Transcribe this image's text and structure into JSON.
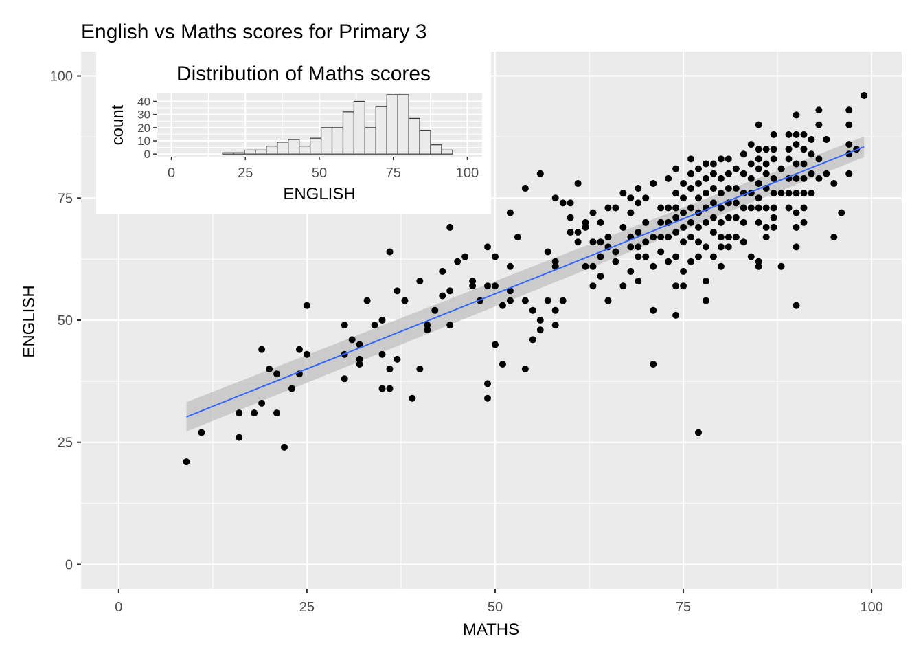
{
  "chart_data": [
    {
      "type": "scatter",
      "title": "English vs Maths scores for Primary 3",
      "xlabel": "MATHS",
      "ylabel": "ENGLISH",
      "xlim": [
        -5,
        104
      ],
      "ylim": [
        -5,
        105
      ],
      "x_ticks": [
        0,
        25,
        50,
        75,
        100
      ],
      "y_ticks": [
        0,
        25,
        50,
        75,
        100
      ],
      "grid": true,
      "background": "#EBEBEB",
      "point_color": "#000000",
      "trend_color": "#3366FF",
      "ribbon_color": "#BEBEBE",
      "points": [
        [
          9,
          21
        ],
        [
          11,
          27
        ],
        [
          16,
          26
        ],
        [
          16,
          31
        ],
        [
          18,
          31
        ],
        [
          19,
          33
        ],
        [
          19,
          44
        ],
        [
          20,
          40
        ],
        [
          21,
          39
        ],
        [
          21,
          31
        ],
        [
          22,
          24
        ],
        [
          23,
          36
        ],
        [
          24,
          39
        ],
        [
          24,
          44
        ],
        [
          25,
          43
        ],
        [
          25,
          53
        ],
        [
          30,
          49
        ],
        [
          30,
          43
        ],
        [
          30,
          38
        ],
        [
          31,
          46
        ],
        [
          32,
          45
        ],
        [
          32,
          41
        ],
        [
          32,
          42
        ],
        [
          33,
          54
        ],
        [
          34,
          49
        ],
        [
          35,
          43
        ],
        [
          35,
          50
        ],
        [
          35,
          36
        ],
        [
          36,
          64
        ],
        [
          36,
          40
        ],
        [
          36,
          36
        ],
        [
          37,
          42
        ],
        [
          37,
          56
        ],
        [
          38,
          54
        ],
        [
          39,
          34
        ],
        [
          40,
          58
        ],
        [
          40,
          40
        ],
        [
          41,
          48
        ],
        [
          41,
          49
        ],
        [
          42,
          52
        ],
        [
          43,
          60
        ],
        [
          43,
          55
        ],
        [
          44,
          69
        ],
        [
          44,
          49
        ],
        [
          44,
          56
        ],
        [
          45,
          62
        ],
        [
          46,
          63
        ],
        [
          47,
          58
        ],
        [
          47,
          57
        ],
        [
          48,
          54
        ],
        [
          49,
          65
        ],
        [
          49,
          57
        ],
        [
          49,
          37
        ],
        [
          49,
          34
        ],
        [
          50,
          63
        ],
        [
          50,
          57
        ],
        [
          50,
          45
        ],
        [
          51,
          41
        ],
        [
          51,
          53
        ],
        [
          52,
          72
        ],
        [
          52,
          61
        ],
        [
          52,
          54
        ],
        [
          52,
          56
        ],
        [
          53,
          67
        ],
        [
          54,
          77
        ],
        [
          54,
          54
        ],
        [
          54,
          40
        ],
        [
          55,
          52
        ],
        [
          55,
          46
        ],
        [
          56,
          80
        ],
        [
          56,
          50
        ],
        [
          56,
          48
        ],
        [
          57,
          54
        ],
        [
          57,
          64
        ],
        [
          58,
          75
        ],
        [
          58,
          62
        ],
        [
          58,
          61
        ],
        [
          58,
          52
        ],
        [
          58,
          49
        ],
        [
          59,
          74
        ],
        [
          59,
          54
        ],
        [
          60,
          74
        ],
        [
          60,
          71
        ],
        [
          60,
          68
        ],
        [
          61,
          68
        ],
        [
          61,
          66
        ],
        [
          61,
          78
        ],
        [
          62,
          70
        ],
        [
          62,
          61
        ],
        [
          62,
          69
        ],
        [
          63,
          72
        ],
        [
          63,
          66
        ],
        [
          63,
          61
        ],
        [
          63,
          57
        ],
        [
          64,
          70
        ],
        [
          64,
          66
        ],
        [
          64,
          63
        ],
        [
          64,
          59
        ],
        [
          65,
          73
        ],
        [
          65,
          67
        ],
        [
          65,
          65
        ],
        [
          65,
          54
        ],
        [
          66,
          73
        ],
        [
          66,
          64
        ],
        [
          66,
          62
        ],
        [
          67,
          76
        ],
        [
          67,
          69
        ],
        [
          67,
          57
        ],
        [
          68,
          75
        ],
        [
          68,
          72
        ],
        [
          68,
          67
        ],
        [
          68,
          65
        ],
        [
          68,
          60
        ],
        [
          69,
          77
        ],
        [
          69,
          74
        ],
        [
          69,
          68
        ],
        [
          69,
          65
        ],
        [
          69,
          63
        ],
        [
          69,
          58
        ],
        [
          70,
          75
        ],
        [
          70,
          70
        ],
        [
          70,
          66
        ],
        [
          70,
          63
        ],
        [
          71,
          78
        ],
        [
          71,
          67
        ],
        [
          71,
          61
        ],
        [
          71,
          52
        ],
        [
          71,
          41
        ],
        [
          72,
          73
        ],
        [
          72,
          70
        ],
        [
          72,
          67
        ],
        [
          72,
          64
        ],
        [
          73,
          79
        ],
        [
          73,
          73
        ],
        [
          73,
          70
        ],
        [
          73,
          67
        ],
        [
          73,
          62
        ],
        [
          74,
          81
        ],
        [
          74,
          76
        ],
        [
          74,
          73
        ],
        [
          74,
          71
        ],
        [
          74,
          68
        ],
        [
          74,
          63
        ],
        [
          74,
          57
        ],
        [
          74,
          51
        ],
        [
          75,
          78
        ],
        [
          75,
          75
        ],
        [
          75,
          72
        ],
        [
          75,
          69
        ],
        [
          75,
          66
        ],
        [
          75,
          60
        ],
        [
          75,
          57
        ],
        [
          76,
          83
        ],
        [
          76,
          80
        ],
        [
          76,
          77
        ],
        [
          76,
          73
        ],
        [
          76,
          70
        ],
        [
          76,
          67
        ],
        [
          76,
          62
        ],
        [
          77,
          81
        ],
        [
          77,
          78
        ],
        [
          77,
          75
        ],
        [
          77,
          72
        ],
        [
          77,
          69
        ],
        [
          77,
          66
        ],
        [
          77,
          63
        ],
        [
          77,
          27
        ],
        [
          78,
          82
        ],
        [
          78,
          79
        ],
        [
          78,
          76
        ],
        [
          78,
          73
        ],
        [
          78,
          70
        ],
        [
          78,
          65
        ],
        [
          78,
          58
        ],
        [
          78,
          54
        ],
        [
          79,
          82
        ],
        [
          79,
          80
        ],
        [
          79,
          77
        ],
        [
          79,
          74
        ],
        [
          79,
          71
        ],
        [
          79,
          68
        ],
        [
          79,
          63
        ],
        [
          80,
          83
        ],
        [
          80,
          79
        ],
        [
          80,
          76
        ],
        [
          80,
          73
        ],
        [
          80,
          70
        ],
        [
          80,
          67
        ],
        [
          80,
          65
        ],
        [
          80,
          61
        ],
        [
          81,
          83
        ],
        [
          81,
          80
        ],
        [
          81,
          77
        ],
        [
          81,
          74
        ],
        [
          81,
          71
        ],
        [
          81,
          67
        ],
        [
          81,
          65
        ],
        [
          82,
          81
        ],
        [
          82,
          77
        ],
        [
          82,
          74
        ],
        [
          82,
          71
        ],
        [
          82,
          67
        ],
        [
          83,
          84
        ],
        [
          83,
          80
        ],
        [
          83,
          76
        ],
        [
          83,
          73
        ],
        [
          83,
          70
        ],
        [
          83,
          66
        ],
        [
          84,
          86
        ],
        [
          84,
          82
        ],
        [
          84,
          79
        ],
        [
          84,
          76
        ],
        [
          84,
          73
        ],
        [
          84,
          63
        ],
        [
          85,
          90
        ],
        [
          85,
          85
        ],
        [
          85,
          83
        ],
        [
          85,
          81
        ],
        [
          85,
          78
        ],
        [
          85,
          75
        ],
        [
          85,
          73
        ],
        [
          85,
          70
        ],
        [
          85,
          62
        ],
        [
          85,
          61
        ],
        [
          86,
          85
        ],
        [
          86,
          82
        ],
        [
          86,
          80
        ],
        [
          86,
          77
        ],
        [
          86,
          73
        ],
        [
          86,
          69
        ],
        [
          86,
          67
        ],
        [
          87,
          88
        ],
        [
          87,
          85
        ],
        [
          87,
          83
        ],
        [
          87,
          79
        ],
        [
          87,
          76
        ],
        [
          87,
          73
        ],
        [
          87,
          71
        ],
        [
          87,
          69
        ],
        [
          88,
          81
        ],
        [
          88,
          76
        ],
        [
          88,
          61
        ],
        [
          89,
          88
        ],
        [
          89,
          85
        ],
        [
          89,
          83
        ],
        [
          89,
          79
        ],
        [
          89,
          76
        ],
        [
          89,
          73
        ],
        [
          90,
          92
        ],
        [
          90,
          88
        ],
        [
          90,
          86
        ],
        [
          90,
          82
        ],
        [
          90,
          79
        ],
        [
          90,
          76
        ],
        [
          90,
          72
        ],
        [
          90,
          69
        ],
        [
          90,
          65
        ],
        [
          90,
          53
        ],
        [
          91,
          88
        ],
        [
          91,
          85
        ],
        [
          91,
          82
        ],
        [
          91,
          79
        ],
        [
          91,
          76
        ],
        [
          91,
          73
        ],
        [
          91,
          70
        ],
        [
          92,
          87
        ],
        [
          92,
          84
        ],
        [
          92,
          80
        ],
        [
          92,
          76
        ],
        [
          93,
          93
        ],
        [
          93,
          90
        ],
        [
          93,
          83
        ],
        [
          93,
          79
        ],
        [
          94,
          87
        ],
        [
          94,
          80
        ],
        [
          95,
          78
        ],
        [
          95,
          67
        ],
        [
          96,
          72
        ],
        [
          97,
          93
        ],
        [
          97,
          90
        ],
        [
          97,
          86
        ],
        [
          97,
          84
        ],
        [
          97,
          80
        ],
        [
          98,
          85
        ],
        [
          99,
          96
        ]
      ],
      "trend": {
        "method": "lm",
        "x": [
          9,
          99
        ],
        "y": [
          30.2,
          85.5
        ],
        "ribbon_low": [
          27.2,
          83.4
        ],
        "ribbon_high": [
          33.2,
          87.6
        ]
      }
    },
    {
      "type": "bar",
      "title": "Distribution of Maths scores",
      "xlabel": "ENGLISH",
      "ylabel": "count",
      "xlim": [
        -5,
        105
      ],
      "ylim": [
        -2,
        46
      ],
      "x_ticks": [
        0,
        25,
        50,
        75,
        100
      ],
      "y_ticks": [
        0,
        10,
        20,
        30,
        40
      ],
      "grid": true,
      "background": "#EBEBEB",
      "bar_fill": "#EBEBEB",
      "bar_outline": "#333333",
      "bin_width": 3.7,
      "bins": [
        [
          17.3,
          21,
          1
        ],
        [
          21,
          24.7,
          1
        ],
        [
          24.7,
          28.4,
          3
        ],
        [
          28.4,
          32.1,
          3
        ],
        [
          32.1,
          35.8,
          6
        ],
        [
          35.8,
          39.5,
          9
        ],
        [
          39.5,
          43.2,
          11
        ],
        [
          43.2,
          46.9,
          6
        ],
        [
          46.9,
          50.6,
          12
        ],
        [
          50.6,
          54.3,
          20
        ],
        [
          54.3,
          58,
          20
        ],
        [
          58,
          61.7,
          32
        ],
        [
          61.7,
          65.4,
          40
        ],
        [
          65.4,
          69.1,
          20
        ],
        [
          69.1,
          72.8,
          36
        ],
        [
          72.8,
          76.5,
          45
        ],
        [
          76.5,
          80.2,
          45
        ],
        [
          80.2,
          83.9,
          27
        ],
        [
          83.9,
          87.6,
          18
        ],
        [
          87.6,
          91.3,
          7
        ],
        [
          91.3,
          95,
          3
        ]
      ]
    }
  ]
}
